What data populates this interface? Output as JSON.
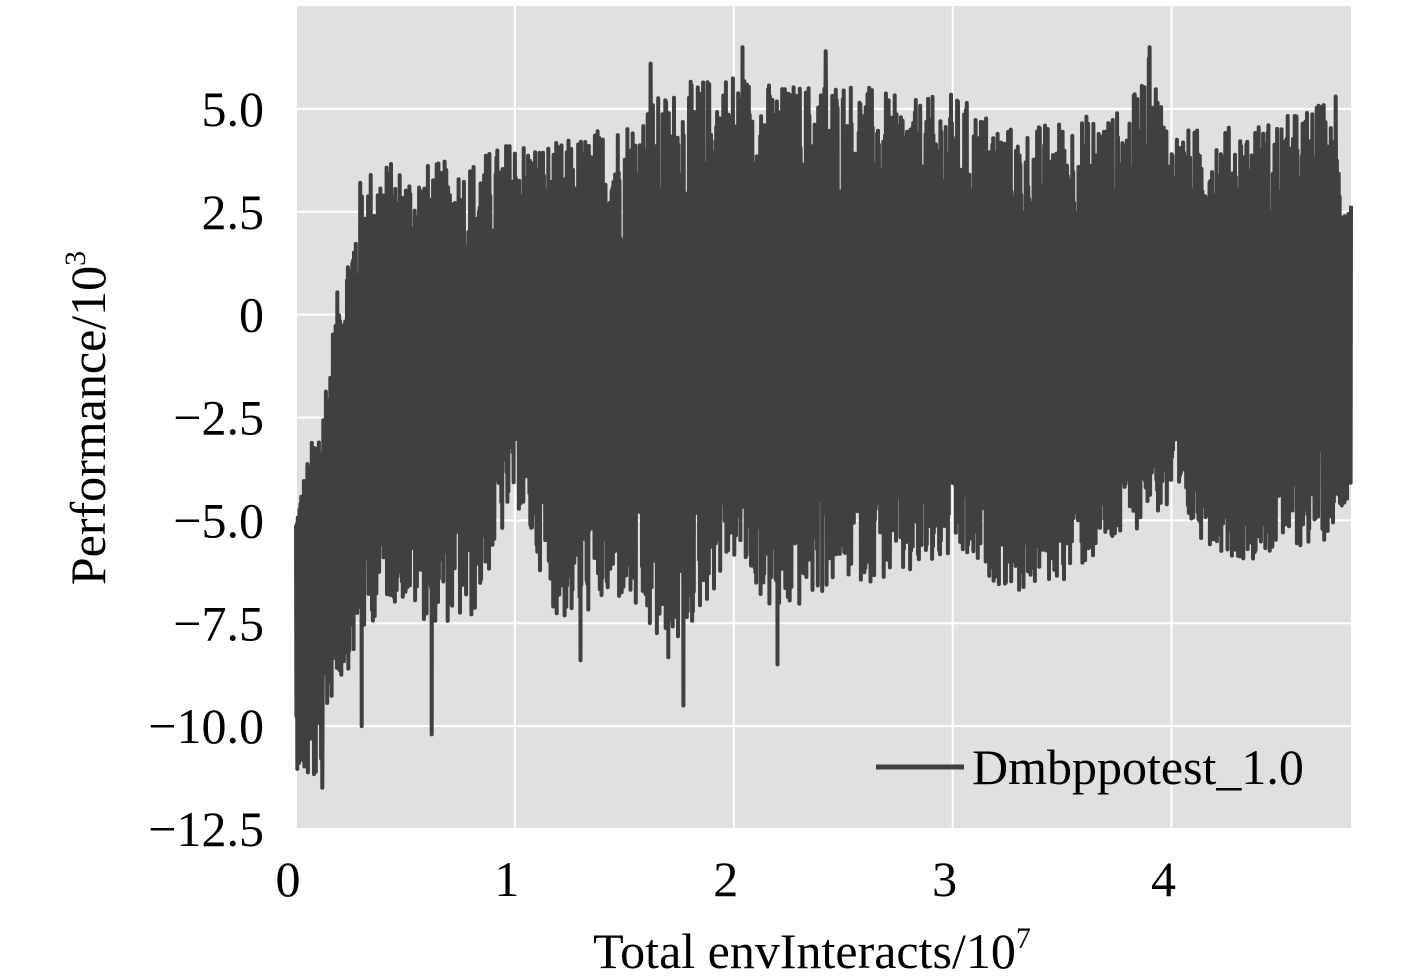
{
  "chart_data": {
    "type": "line",
    "xlabel": "Total envInteracts/10",
    "xlabel_exponent": "7",
    "ylabel": "Performance/10",
    "ylabel_exponent": "3",
    "xlim": [
      0,
      4.82
    ],
    "ylim": [
      -12.5,
      7.5
    ],
    "x_ticks": [
      0,
      1,
      2,
      3,
      4
    ],
    "x_tick_labels": [
      "0",
      "1",
      "2",
      "3",
      "4"
    ],
    "y_ticks": [
      5.0,
      2.5,
      0,
      -2.5,
      -5.0,
      -7.5,
      -10.0,
      -12.5
    ],
    "y_tick_labels": [
      "5.0",
      "2.5",
      "0",
      "−2.5",
      "−5.0",
      "−7.5",
      "−10.0",
      "−12.5"
    ],
    "grid": true,
    "legend_position": "lower-right",
    "colors": {
      "plot_background": "#e0e0e0",
      "grid": "#ffffff",
      "series": "#404040"
    },
    "series": [
      {
        "name": "Dmbppotest_1.0",
        "envelope": {
          "x": [
            0.0,
            0.05,
            0.1,
            0.15,
            0.2,
            0.25,
            0.3,
            0.4,
            0.5,
            0.6,
            0.8,
            1.0,
            1.2,
            1.5,
            1.7,
            2.0,
            2.2,
            2.5,
            2.8,
            3.0,
            3.3,
            3.5,
            3.8,
            3.9,
            4.0,
            4.3,
            4.5,
            4.7,
            4.82
          ],
          "upper": [
            -4.5,
            -3.5,
            -2.5,
            -1.0,
            1.0,
            2.0,
            3.5,
            3.8,
            3.6,
            3.7,
            3.8,
            4.3,
            4.2,
            4.8,
            5.5,
            6.0,
            5.6,
            5.8,
            5.2,
            5.4,
            4.5,
            4.8,
            5.0,
            6.3,
            4.5,
            4.6,
            4.8,
            5.2,
            3.0
          ],
          "lower": [
            -11.0,
            -11.4,
            -11.5,
            -9.5,
            -9.0,
            -8.5,
            -8.0,
            -7.0,
            -7.0,
            -7.5,
            -7.5,
            -4.5,
            -7.5,
            -7.0,
            -8.5,
            -6.0,
            -7.5,
            -6.5,
            -6.5,
            -6.0,
            -6.8,
            -6.5,
            -5.5,
            -4.8,
            -5.0,
            -6.0,
            -5.8,
            -5.5,
            -4.3
          ]
        },
        "notable_spikes": [
          {
            "x": 0.12,
            "y": -11.5
          },
          {
            "x": 0.3,
            "y": -10.0
          },
          {
            "x": 0.62,
            "y": -10.2
          },
          {
            "x": 1.3,
            "y": -8.4
          },
          {
            "x": 1.77,
            "y": -9.5
          },
          {
            "x": 2.2,
            "y": -8.5
          },
          {
            "x": 1.62,
            "y": 6.1
          },
          {
            "x": 2.04,
            "y": 6.5
          },
          {
            "x": 2.42,
            "y": 6.4
          },
          {
            "x": 3.9,
            "y": 6.5
          },
          {
            "x": 4.75,
            "y": 5.3
          }
        ]
      }
    ]
  }
}
